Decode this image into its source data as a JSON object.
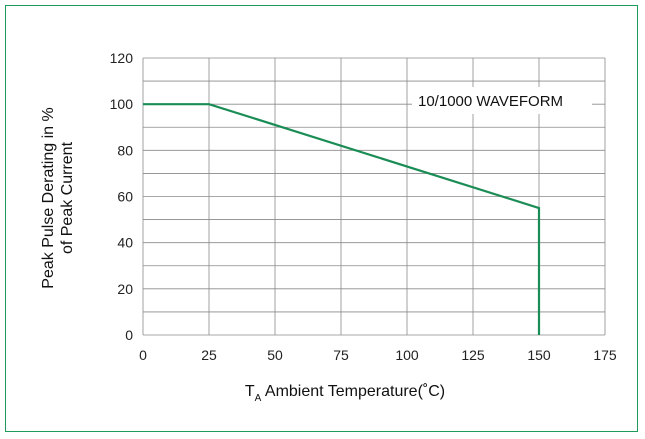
{
  "chart_data": {
    "type": "line",
    "xlabel_main": "T",
    "xlabel_sub": "A",
    "xlabel_rest": " Ambient Temperature(˚C)",
    "ylabel_line1": "Peak Pulse Derating in %",
    "ylabel_line2": "of Peak Current",
    "annotation": "10/1000 WAVEFORM",
    "xlim": [
      0,
      175
    ],
    "ylim": [
      0,
      120
    ],
    "x_ticks": [
      "0",
      "25",
      "50",
      "75",
      "100",
      "125",
      "150",
      "175"
    ],
    "y_ticks": [
      "0",
      "20",
      "40",
      "60",
      "80",
      "100",
      "120"
    ],
    "x_tick_values": [
      0,
      25,
      50,
      75,
      100,
      125,
      150,
      175
    ],
    "y_tick_values": [
      0,
      20,
      40,
      60,
      80,
      100,
      120
    ],
    "grid": true,
    "series": [
      {
        "x": [
          0,
          25,
          150,
          150
        ],
        "y": [
          100,
          100,
          55,
          0
        ]
      }
    ]
  },
  "colors": {
    "line": "#1a8c55",
    "frame": "#1f9a5a",
    "grid": "#8a8a8a"
  }
}
